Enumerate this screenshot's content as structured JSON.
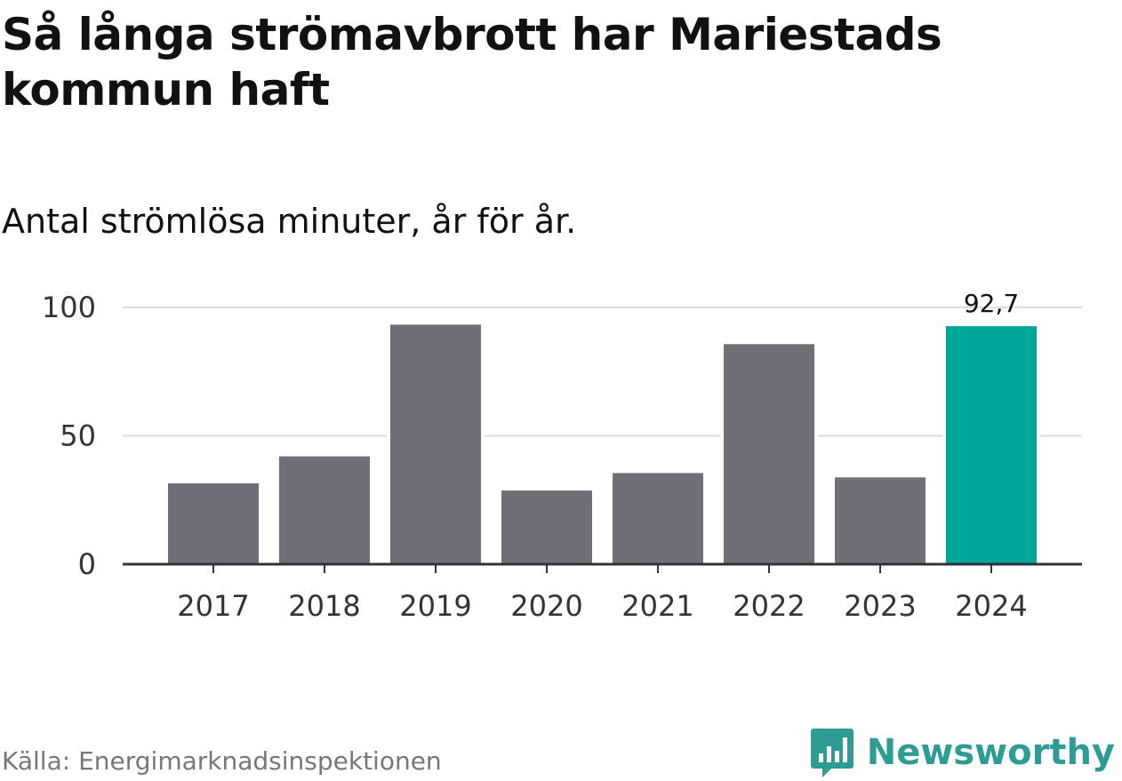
{
  "header": {
    "title": "Så långa strömavbrott har Mariestads kommun haft",
    "subtitle": "Antal strömlösa minuter, år för år."
  },
  "footer": {
    "source": "Källa: Energimarknadsinspektionen",
    "brand": "Newsworthy",
    "brand_icon": "chat-bubble-bar-chart-icon"
  },
  "colors": {
    "bar": "#706e76",
    "highlight": "#00a59b",
    "grid": "#dddddd",
    "axis": "#333333",
    "brand": "#2c9c95"
  },
  "chart_data": {
    "type": "bar",
    "title": "Så långa strömavbrott har Mariestads kommun haft",
    "subtitle": "Antal strömlösa minuter, år för år.",
    "xlabel": "",
    "ylabel": "",
    "categories": [
      "2017",
      "2018",
      "2019",
      "2020",
      "2021",
      "2022",
      "2023",
      "2024"
    ],
    "values": [
      31.5,
      42,
      93.3,
      28.7,
      35.5,
      85.7,
      33.8,
      92.7
    ],
    "highlight_index": 7,
    "data_labels": [
      {
        "category": "2024",
        "text": "92,7"
      }
    ],
    "ylim": [
      0,
      100
    ],
    "yticks": [
      {
        "value": 0,
        "label": "0"
      },
      {
        "value": 50,
        "label": "50"
      },
      {
        "value": 100,
        "label": "100"
      }
    ],
    "grid": true,
    "legend": "none"
  }
}
